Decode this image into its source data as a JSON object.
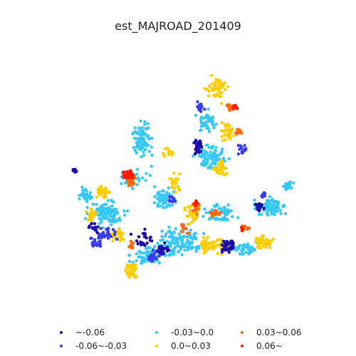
{
  "map": {
    "title": "est_MAJROAD_201409",
    "legend": [
      {
        "label": "~-0.06",
        "color": "#1a0dab"
      },
      {
        "label": "-0.06~-0.03",
        "color": "#3a3af0"
      },
      {
        "label": "-0.03~0.0",
        "color": "#38c8f5"
      },
      {
        "label": "0.0~0.03",
        "color": "#ffcc00"
      },
      {
        "label": "0.03~0.06",
        "color": "#ff6a10"
      },
      {
        "label": "0.06~",
        "color": "#ff1a00"
      }
    ]
  }
}
